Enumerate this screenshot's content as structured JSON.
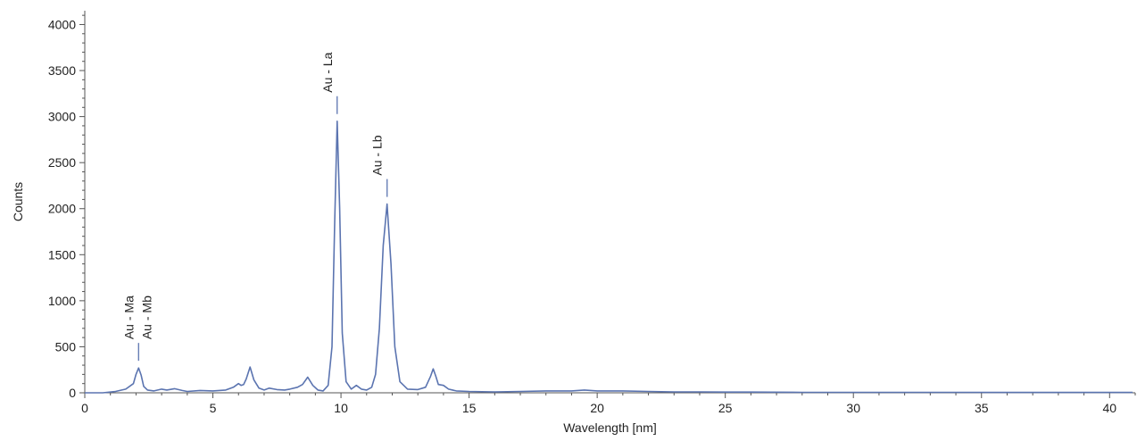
{
  "chart_data": {
    "type": "line",
    "title": "",
    "xlabel": "Wavelength [nm]",
    "ylabel": "Counts",
    "xlim": [
      0,
      41
    ],
    "ylim": [
      0,
      4150
    ],
    "grid": false,
    "legend": "none",
    "line_color": "#5b74b0",
    "x_ticks": [
      0,
      5,
      10,
      15,
      20,
      25,
      30,
      35,
      40
    ],
    "y_ticks": [
      0,
      500,
      1000,
      1500,
      2000,
      2500,
      3000,
      3500,
      4000
    ],
    "x_tick_labels": [
      "0",
      "5",
      "10",
      "15",
      "20",
      "25",
      "30",
      "35",
      "40"
    ],
    "y_tick_labels": [
      "0",
      "500",
      "1000",
      "1500",
      "2000",
      "2500",
      "3000",
      "3500",
      "4000"
    ],
    "series": [
      {
        "x": [
          0,
          0.7,
          1.2,
          1.6,
          1.9,
          2.0,
          2.1,
          2.2,
          2.3,
          2.45,
          2.7,
          3.0,
          3.2,
          3.5,
          3.8,
          4.0,
          4.5,
          5.0,
          5.5,
          5.8,
          6.0,
          6.1,
          6.2,
          6.3,
          6.45,
          6.6,
          6.8,
          7.0,
          7.2,
          7.5,
          7.8,
          8.0,
          8.3,
          8.5,
          8.7,
          8.9,
          9.1,
          9.3,
          9.5,
          9.65,
          9.75,
          9.85,
          9.95,
          10.05,
          10.2,
          10.4,
          10.6,
          10.8,
          11.0,
          11.2,
          11.35,
          11.5,
          11.65,
          11.8,
          11.95,
          12.1,
          12.3,
          12.6,
          13.0,
          13.3,
          13.5,
          13.6,
          13.7,
          13.8,
          14.0,
          14.2,
          14.5,
          15.0,
          16.0,
          17.0,
          18.0,
          19.0,
          19.5,
          20.0,
          21.0,
          22.0,
          23.0,
          24.0,
          25.0,
          26.0,
          28.0,
          30.0,
          32.0,
          34.0,
          36.0,
          38.0,
          40.0,
          40.9
        ],
        "y": [
          0,
          0,
          15,
          40,
          100,
          200,
          270,
          190,
          70,
          30,
          20,
          40,
          30,
          45,
          25,
          15,
          25,
          20,
          30,
          60,
          100,
          80,
          90,
          150,
          280,
          140,
          50,
          30,
          50,
          35,
          30,
          40,
          60,
          90,
          170,
          80,
          30,
          20,
          80,
          500,
          1800,
          2950,
          2000,
          650,
          120,
          40,
          80,
          40,
          30,
          60,
          200,
          700,
          1600,
          2050,
          1400,
          500,
          120,
          40,
          35,
          60,
          180,
          260,
          180,
          90,
          80,
          40,
          20,
          15,
          10,
          15,
          20,
          20,
          30,
          20,
          20,
          15,
          10,
          10,
          8,
          8,
          5,
          5,
          5,
          5,
          4,
          4,
          4,
          4
        ]
      }
    ],
    "annotations": [
      {
        "text": "Au - Ma",
        "x": 2.1,
        "y": 270
      },
      {
        "text": "Au - Mb",
        "x": 2.1,
        "y": 270
      },
      {
        "text": "Au - La",
        "x": 9.85,
        "y": 2950
      },
      {
        "text": "Au - Lb",
        "x": 11.8,
        "y": 2050
      }
    ]
  }
}
